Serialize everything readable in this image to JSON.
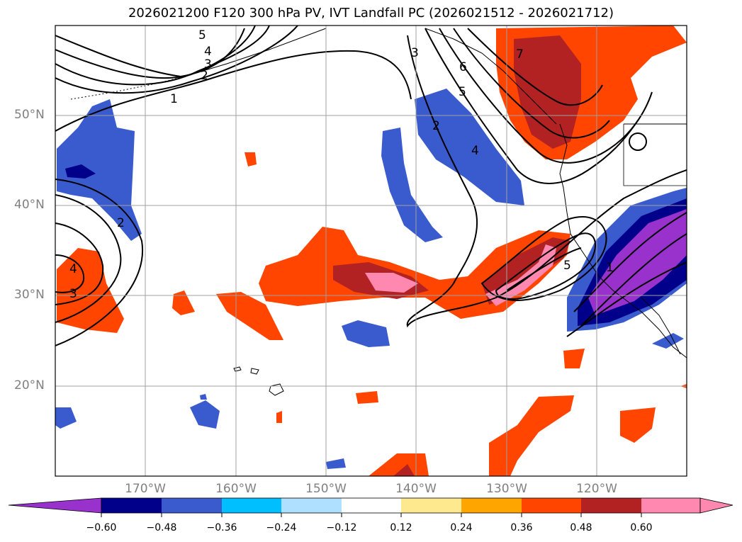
{
  "title": "2026021200 F120 300 hPa PV, IVT Landfall PC (2026021512 - 2026021712)",
  "map": {
    "region": "North Pacific / North America west coast",
    "lat_labels": [
      "50°N",
      "40°N",
      "30°N",
      "20°N"
    ],
    "lon_labels": [
      "170°W",
      "160°W",
      "150°W",
      "140°W",
      "130°W",
      "120°W"
    ],
    "contour_labels": [
      "5",
      "4",
      "3",
      "2",
      "1",
      "2",
      "4",
      "3",
      "3",
      "6",
      "5",
      "2",
      "4",
      "7",
      "5",
      "1"
    ]
  },
  "colorbar": {
    "ticks": [
      "−0.60",
      "−0.48",
      "−0.36",
      "−0.24",
      "−0.12",
      "0.12",
      "0.24",
      "0.36",
      "0.48",
      "0.60"
    ],
    "colors": [
      "#9932cc",
      "#00008b",
      "#3a5bcd",
      "#00bfff",
      "#b0e0ff",
      "#ffffff",
      "#ffe98f",
      "#ffa500",
      "#ff4500",
      "#b22222",
      "#ff88b0"
    ]
  }
}
